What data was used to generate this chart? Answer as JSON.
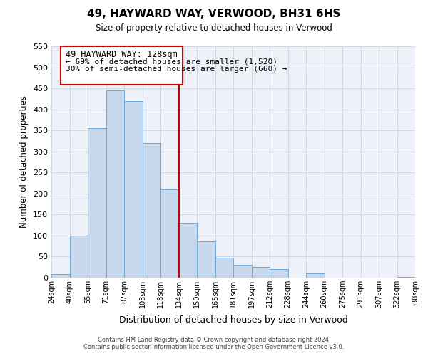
{
  "title": "49, HAYWARD WAY, VERWOOD, BH31 6HS",
  "subtitle": "Size of property relative to detached houses in Verwood",
  "xlabel": "Distribution of detached houses by size in Verwood",
  "ylabel": "Number of detached properties",
  "bin_labels": [
    "24sqm",
    "40sqm",
    "55sqm",
    "71sqm",
    "87sqm",
    "103sqm",
    "118sqm",
    "134sqm",
    "150sqm",
    "165sqm",
    "181sqm",
    "197sqm",
    "212sqm",
    "228sqm",
    "244sqm",
    "260sqm",
    "275sqm",
    "291sqm",
    "307sqm",
    "322sqm",
    "338sqm"
  ],
  "bar_heights": [
    8,
    100,
    355,
    445,
    420,
    320,
    210,
    130,
    87,
    48,
    30,
    25,
    20,
    0,
    10,
    0,
    0,
    0,
    0,
    2
  ],
  "bar_color": "#c8d9ee",
  "bar_edge_color": "#6fa8d8",
  "vline_x": 7,
  "vline_color": "#cc0000",
  "annotation_title": "49 HAYWARD WAY: 128sqm",
  "annotation_line1": "← 69% of detached houses are smaller (1,520)",
  "annotation_line2": "30% of semi-detached houses are larger (660) →",
  "annotation_box_color": "#ffffff",
  "annotation_box_edge": "#cc0000",
  "ylim": [
    0,
    550
  ],
  "yticks": [
    0,
    50,
    100,
    150,
    200,
    250,
    300,
    350,
    400,
    450,
    500,
    550
  ],
  "footer_line1": "Contains HM Land Registry data © Crown copyright and database right 2024.",
  "footer_line2": "Contains public sector information licensed under the Open Government Licence v3.0.",
  "bg_color": "#ffffff",
  "grid_color": "#d0d8e8",
  "plot_bg_color": "#eef2f8"
}
